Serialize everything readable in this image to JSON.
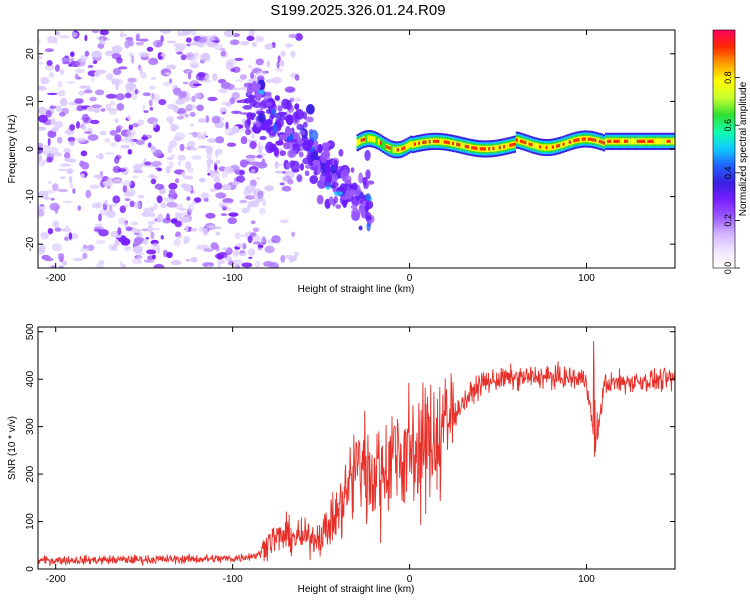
{
  "title": "S199.2025.326.01.24.R09",
  "colors": {
    "snr_line": "#e8302a",
    "colormap": [
      "#ffffff",
      "#f0e6ff",
      "#d2b4ff",
      "#9b59ff",
      "#7a1fff",
      "#3a1fe0",
      "#2060ff",
      "#10c8ff",
      "#10ffb0",
      "#30e030",
      "#c8ff30",
      "#ffff00",
      "#ffa000",
      "#ff2a00",
      "#ff0060"
    ]
  },
  "chart_data": [
    {
      "type": "heatmap",
      "title": "S199.2025.326.01.24.R09",
      "xlabel": "Height of straight line (km)",
      "ylabel": "Frequency (Hz)",
      "xlim": [
        -210,
        150
      ],
      "ylim": [
        -25,
        25
      ],
      "xticks": [
        -200,
        -100,
        0,
        100
      ],
      "yticks": [
        -20,
        -10,
        0,
        10,
        20
      ],
      "colorbar": {
        "label": "Normalized spectral amplitude",
        "range": [
          0,
          1
        ],
        "ticks": [
          "0.0",
          "0.2",
          "0.4",
          "0.6",
          "0.8"
        ]
      },
      "regions": [
        {
          "name": "noise",
          "x_range": [
            -210,
            -90
          ],
          "y_range": [
            -25,
            25
          ],
          "amplitude": 0.1
        },
        {
          "name": "diagonal",
          "x_range": [
            -90,
            -30
          ],
          "y_range": [
            -12,
            10
          ],
          "amplitude": 0.25
        },
        {
          "name": "ridge",
          "x_range": [
            -30,
            150
          ],
          "y_range": [
            -1,
            3
          ],
          "amplitude": 0.9
        }
      ]
    },
    {
      "type": "line",
      "xlabel": "Height of straight line (km)",
      "ylabel": "SNR (10 * v/v)",
      "xlim": [
        -210,
        150
      ],
      "ylim": [
        0,
        510
      ],
      "xticks": [
        -200,
        -100,
        0,
        100
      ],
      "yticks": [
        0,
        100,
        200,
        300,
        400,
        500
      ],
      "series": [
        {
          "name": "SNR",
          "x": [
            -210,
            -150,
            -100,
            -85,
            -80,
            -70,
            -60,
            -50,
            -40,
            -30,
            -20,
            -10,
            0,
            10,
            20,
            30,
            40,
            50,
            75,
            100,
            105,
            110,
            125,
            150
          ],
          "y": [
            18,
            20,
            22,
            30,
            60,
            70,
            65,
            70,
            120,
            220,
            210,
            240,
            250,
            260,
            300,
            350,
            390,
            400,
            405,
            400,
            250,
            390,
            395,
            400
          ]
        }
      ]
    }
  ]
}
